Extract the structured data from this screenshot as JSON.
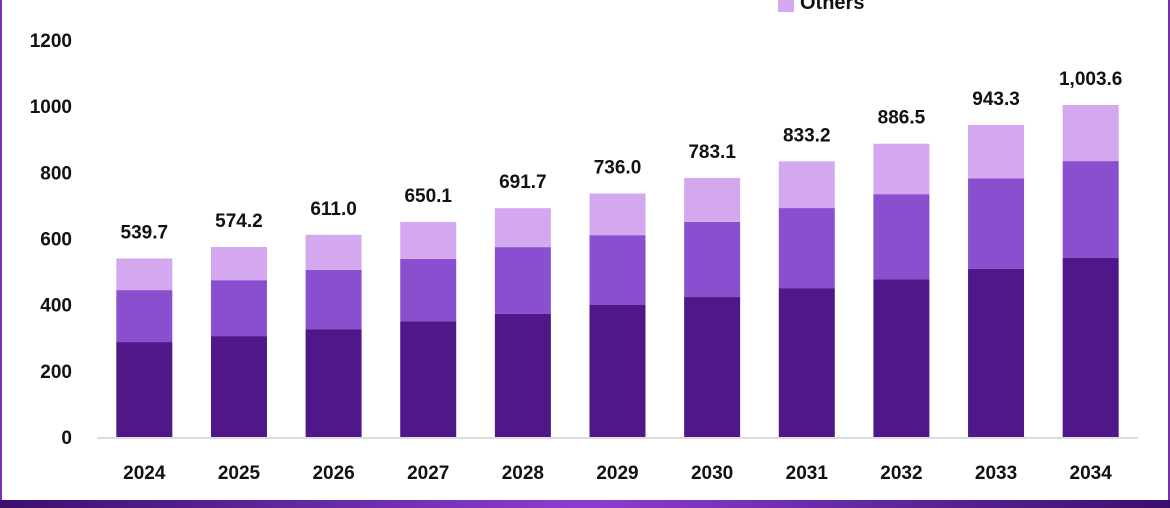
{
  "chart_data": {
    "type": "bar",
    "stacked": true,
    "categories": [
      "2024",
      "2025",
      "2026",
      "2027",
      "2028",
      "2029",
      "2030",
      "2031",
      "2032",
      "2033",
      "2034"
    ],
    "series": [
      {
        "values": [
          287,
          305,
          326,
          350,
          372,
          399,
          423,
          450,
          477,
          508,
          541
        ],
        "color": "#4f1787"
      },
      {
        "values": [
          157,
          169,
          179,
          188,
          202,
          211,
          227,
          242,
          257,
          274,
          293
        ],
        "color": "#8a4fcf"
      },
      {
        "name": "Others",
        "values": [
          95.7,
          100.2,
          106.0,
          112.1,
          117.7,
          126.0,
          133.1,
          141.2,
          152.5,
          161.3,
          169.6
        ],
        "color": "#d4a8ee"
      }
    ],
    "totals_labels": [
      "539.7",
      "574.2",
      "611.0",
      "650.1",
      "691.7",
      "736.0",
      "783.1",
      "833.2",
      "886.5",
      "943.3",
      "1,003.6"
    ],
    "totals": [
      539.7,
      574.2,
      611.0,
      650.1,
      691.7,
      736.0,
      783.1,
      833.2,
      886.5,
      943.3,
      1003.6
    ],
    "yticks": [
      "0",
      "200",
      "400",
      "600",
      "800",
      "1000",
      "1200"
    ],
    "ylim": [
      0,
      1200
    ],
    "grid": false,
    "legend_position": "top-right",
    "xlabel": "",
    "ylabel": ""
  },
  "legend": {
    "items": [
      {
        "label": "Others",
        "color": "#d4a8ee"
      }
    ]
  }
}
